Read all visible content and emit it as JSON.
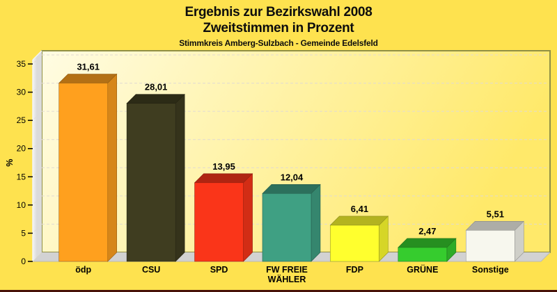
{
  "header": {
    "title_line1": "Ergebnis zur Bezirkswahl 2008",
    "title_line2": "Zweitstimmen in Prozent",
    "subtitle": "Stimmkreis Amberg-Sulzbach - Gemeinde Edelsfeld"
  },
  "colors": {
    "page_bg": "#fee24f",
    "title_text": "#0d0d0d",
    "plot_bg_left": "#fffce3",
    "plot_bg_right": "#ffe96a",
    "plot_border": "#8f8f45",
    "wall_face": "#dbdbdb",
    "wall_highlight": "#f4f4f4",
    "floor_face": "#d2d2d2",
    "floor_edge": "#b9b9b9",
    "gridline": "#e0dad2",
    "axis_text": "#000000",
    "bottom_edge": "#471108"
  },
  "chart_data": {
    "type": "bar",
    "style": "3d",
    "title": "Ergebnis zur Bezirkswahl 2008",
    "subtitle": "Zweitstimmen in Prozent",
    "caption": "Stimmkreis Amberg-Sulzbach - Gemeinde Edelsfeld",
    "categories": [
      "ödp",
      "CSU",
      "SPD",
      "FW FREIE\nWÄHLER",
      "FDP",
      "GRÜNE",
      "Sonstige"
    ],
    "values": [
      31.61,
      28.01,
      13.95,
      12.04,
      6.41,
      2.47,
      5.51
    ],
    "value_labels": [
      "31,61",
      "28,01",
      "13,95",
      "12,04",
      "6,41",
      "2,47",
      "5,51"
    ],
    "bar_colors": [
      "#ffa01e",
      "#3f3d20",
      "#fa3519",
      "#3fa083",
      "#ffff2e",
      "#36cc2e",
      "#f7f7ee"
    ],
    "xlabel": "",
    "ylabel": "%",
    "ylim": [
      0,
      35
    ],
    "ytick_step": 5,
    "yticks": [
      0,
      5,
      10,
      15,
      20,
      25,
      30,
      35
    ],
    "grid": "dashed",
    "legend": "none"
  }
}
